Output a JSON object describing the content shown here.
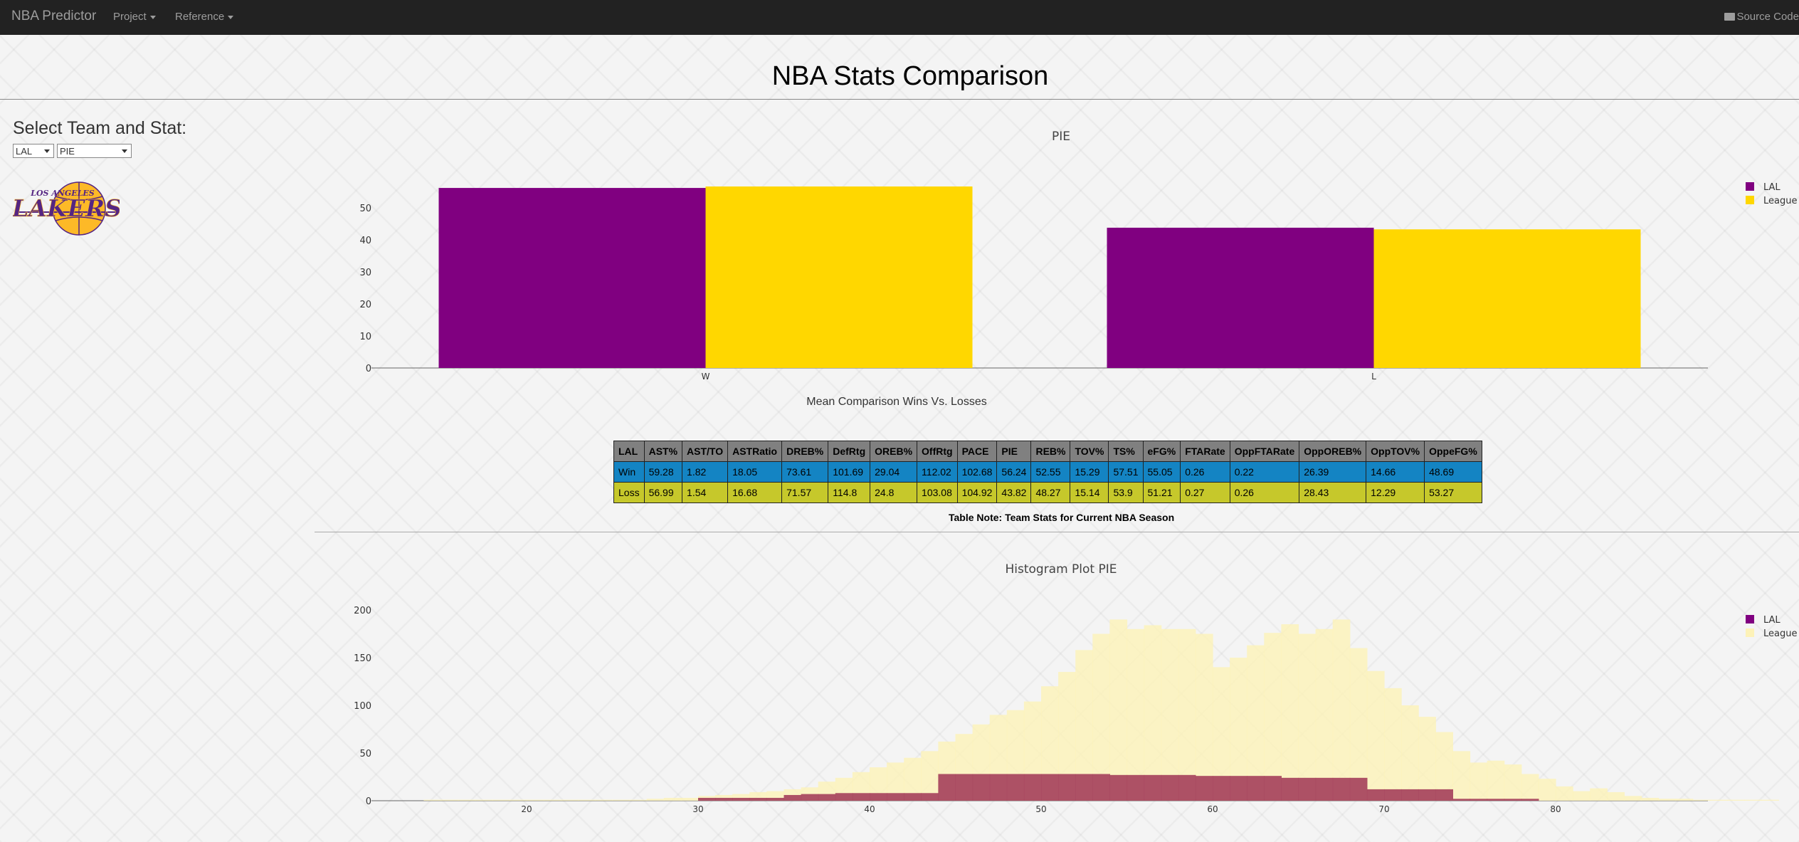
{
  "navbar": {
    "brand": "NBA Predictor",
    "menu_project": "Project",
    "menu_reference": "Reference",
    "source_code": "Source Code"
  },
  "page": {
    "title": "NBA Stats Comparison",
    "select_label": "Select Team and Stat:",
    "team_selected": "LAL",
    "stat_selected": "PIE"
  },
  "logo": {
    "top_text": "LOS ANGELES",
    "main_text": "LAKERS",
    "colors": {
      "purple": "#552583",
      "gold": "#fdb927"
    }
  },
  "colors": {
    "team": "#800080",
    "league": "#ffd700",
    "hist_team": "#a94860",
    "hist_league": "#fdf2b8",
    "table_header": "#808080",
    "table_win": "#1484c3",
    "table_loss": "#c6c82b"
  },
  "chart_data": [
    {
      "type": "bar",
      "title": "PIE",
      "caption": "Mean Comparison Wins Vs. Losses",
      "categories": [
        "W",
        "L"
      ],
      "series": [
        {
          "name": "LAL",
          "values": [
            56.24,
            43.82
          ]
        },
        {
          "name": "League",
          "values": [
            56.7,
            43.3
          ]
        }
      ],
      "ylim": [
        0,
        56.7
      ],
      "yticks": [
        0,
        10,
        20,
        30,
        40,
        50
      ],
      "legend": "top-right",
      "grid": false
    },
    {
      "type": "bar",
      "title": "Histogram Plot PIE",
      "bin_width": 1,
      "bin_start": 11,
      "series": [
        {
          "name": "LAL",
          "bin_start": 30,
          "values": [
            3,
            3,
            3,
            3,
            3,
            6,
            7,
            7,
            8,
            8,
            8,
            8,
            8,
            8,
            28,
            28,
            28,
            28,
            28,
            28,
            28,
            28,
            28,
            28,
            27,
            27,
            27,
            27,
            27,
            26,
            26,
            26,
            26,
            26,
            24,
            24,
            24,
            24,
            24,
            12,
            12,
            12,
            12,
            12,
            2,
            2,
            2,
            2,
            2
          ]
        },
        {
          "name": "League",
          "bin_start": 11,
          "values": [
            0,
            0,
            0,
            1,
            1,
            1,
            1,
            1,
            1,
            1,
            1,
            1,
            1,
            1,
            1,
            1,
            2,
            3,
            3,
            5,
            6,
            7,
            9,
            10,
            12,
            14,
            20,
            24,
            30,
            35,
            40,
            45,
            52,
            62,
            70,
            80,
            90,
            95,
            104,
            120,
            135,
            158,
            175,
            190,
            180,
            184,
            180,
            180,
            175,
            140,
            150,
            163,
            176,
            185,
            175,
            180,
            190,
            160,
            136,
            118,
            100,
            88,
            72,
            52,
            40,
            42,
            38,
            28,
            23,
            15,
            10,
            13,
            9,
            5,
            3,
            2,
            2,
            1,
            1,
            1,
            1,
            1
          ]
        }
      ],
      "xlim": [
        11,
        89
      ],
      "xticks": [
        20,
        30,
        40,
        50,
        60,
        70,
        80
      ],
      "ylim": [
        0,
        200
      ],
      "yticks": [
        0,
        50,
        100,
        150,
        200
      ],
      "legend": "top-right",
      "grid": false
    }
  ],
  "table": {
    "headers": [
      "LAL",
      "AST%",
      "AST/TO",
      "ASTRatio",
      "DREB%",
      "DefRtg",
      "OREB%",
      "OffRtg",
      "PACE",
      "PIE",
      "REB%",
      "TOV%",
      "TS%",
      "eFG%",
      "FTARate",
      "OppFTARate",
      "OppOREB%",
      "OppTOV%",
      "OppeFG%"
    ],
    "rows": [
      [
        "Win",
        "59.28",
        "1.82",
        "18.05",
        "73.61",
        "101.69",
        "29.04",
        "112.02",
        "102.68",
        "56.24",
        "52.55",
        "15.29",
        "57.51",
        "55.05",
        "0.26",
        "0.22",
        "26.39",
        "14.66",
        "48.69"
      ],
      [
        "Loss",
        "56.99",
        "1.54",
        "16.68",
        "71.57",
        "114.8",
        "24.8",
        "103.08",
        "104.92",
        "43.82",
        "48.27",
        "15.14",
        "53.9",
        "51.21",
        "0.27",
        "0.26",
        "28.43",
        "12.29",
        "53.27"
      ]
    ],
    "note": "Table Note: Team Stats for Current NBA Season"
  }
}
